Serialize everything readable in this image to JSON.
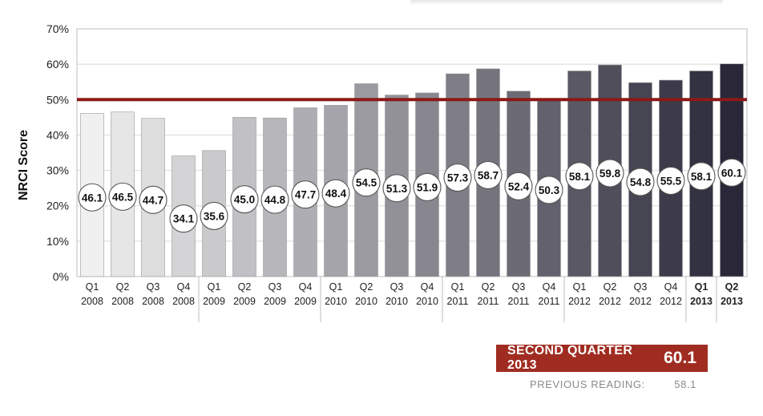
{
  "chart_data": {
    "type": "bar",
    "title": "",
    "xlabel": "",
    "ylabel": "NRCI Score",
    "ylim": [
      0,
      70
    ],
    "yticks": [
      "0%",
      "10%",
      "20%",
      "30%",
      "40%",
      "50%",
      "60%",
      "70%"
    ],
    "reference_line": 50,
    "categories": [
      {
        "q": "Q1",
        "y": "2008"
      },
      {
        "q": "Q2",
        "y": "2008"
      },
      {
        "q": "Q3",
        "y": "2008"
      },
      {
        "q": "Q4",
        "y": "2008"
      },
      {
        "q": "Q1",
        "y": "2009"
      },
      {
        "q": "Q2",
        "y": "2009"
      },
      {
        "q": "Q3",
        "y": "2009"
      },
      {
        "q": "Q4",
        "y": "2009"
      },
      {
        "q": "Q1",
        "y": "2010"
      },
      {
        "q": "Q2",
        "y": "2010"
      },
      {
        "q": "Q3",
        "y": "2010"
      },
      {
        "q": "Q4",
        "y": "2010"
      },
      {
        "q": "Q1",
        "y": "2011"
      },
      {
        "q": "Q2",
        "y": "2011"
      },
      {
        "q": "Q3",
        "y": "2011"
      },
      {
        "q": "Q4",
        "y": "2011"
      },
      {
        "q": "Q1",
        "y": "2012"
      },
      {
        "q": "Q2",
        "y": "2012"
      },
      {
        "q": "Q3",
        "y": "2012"
      },
      {
        "q": "Q4",
        "y": "2012"
      },
      {
        "q": "Q1",
        "y": "2013"
      },
      {
        "q": "Q2",
        "y": "2013"
      }
    ],
    "values": [
      46.1,
      46.5,
      44.7,
      34.1,
      35.6,
      45.0,
      44.8,
      47.7,
      48.4,
      54.5,
      51.3,
      51.9,
      57.3,
      58.7,
      52.4,
      50.3,
      58.1,
      59.8,
      54.8,
      55.5,
      58.1,
      60.1
    ],
    "value_labels": [
      "46.1",
      "46.5",
      "44.7",
      "34.1",
      "35.6",
      "45.0",
      "44.8",
      "47.7",
      "48.4",
      "54.5",
      "51.3",
      "51.9",
      "57.3",
      "58.7",
      "52.4",
      "50.3",
      "58.1",
      "59.8",
      "54.8",
      "55.5",
      "58.1",
      "60.1"
    ],
    "colors": {
      "bar_light": "#f0f0f0",
      "bar_dark": "#2a2838",
      "reference_line": "#8b1a17",
      "summary_box": "#a02c21"
    }
  },
  "summary": {
    "label": "SECOND QUARTER 2013",
    "value": "60.1",
    "previous_label": "PREVIOUS READING:",
    "previous_value": "58.1"
  }
}
